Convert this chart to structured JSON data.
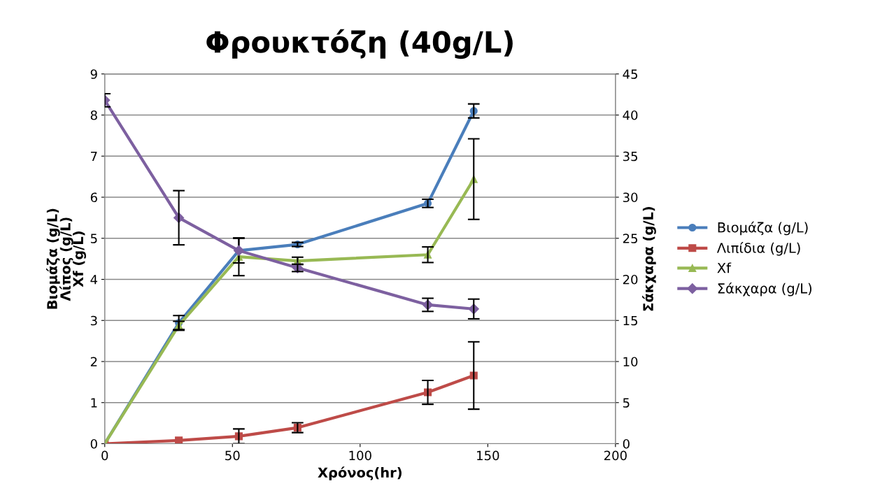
{
  "chart_data": {
    "type": "line",
    "title": "Φρουκτόζη (40g/L)",
    "xlabel": "Χρόνος(hr)",
    "ylabel": "Βιομάζα (g/L)\nΛίπος (g/L)\nXf (g/L)",
    "y2label": "Σάκχαρα (g/L)",
    "x": [
      0,
      29,
      52.5,
      75.5,
      126.5,
      144.5
    ],
    "series": [
      {
        "name": "Βιομάζα (g/L)",
        "color": "#4a7ebb",
        "marker": "circle",
        "values": [
          0,
          2.94,
          4.7,
          4.85,
          5.85,
          8.1
        ],
        "errors": [
          null,
          0.18,
          0.3,
          0.05,
          0.1,
          0.17
        ]
      },
      {
        "name": "Λιπίδια (g/L)",
        "color": "#be4b48",
        "marker": "square",
        "values": [
          0,
          0.08,
          0.18,
          0.39,
          1.25,
          1.66
        ],
        "errors": [
          null,
          null,
          0.18,
          0.12,
          0.29,
          0.82
        ]
      },
      {
        "name": "Xf",
        "color": "#98b954",
        "marker": "triangle",
        "values": [
          0,
          2.88,
          4.55,
          4.45,
          4.6,
          6.44
        ],
        "errors": [
          null,
          0.1,
          0.46,
          0.09,
          0.19,
          0.98
        ]
      },
      {
        "name": "Σάκχαρα (g/L)",
        "color": "#7d60a0",
        "marker": "diamond",
        "axis": "y2",
        "values": [
          41.8,
          27.5,
          23.5,
          21.4,
          16.9,
          16.4
        ],
        "errors": [
          0.8,
          3.3,
          null,
          0.45,
          0.8,
          1.2
        ]
      }
    ],
    "xlim": [
      0,
      200
    ],
    "xticks": [
      0,
      50,
      100,
      150,
      200
    ],
    "ylim": [
      0,
      9
    ],
    "yticks": [
      0,
      1,
      2,
      3,
      4,
      5,
      6,
      7,
      8,
      9
    ],
    "y2lim": [
      0,
      45
    ],
    "y2ticks": [
      0,
      5,
      10,
      15,
      20,
      25,
      30,
      35,
      40,
      45
    ],
    "grid": "y",
    "legend": "right",
    "line_style": "solid"
  }
}
